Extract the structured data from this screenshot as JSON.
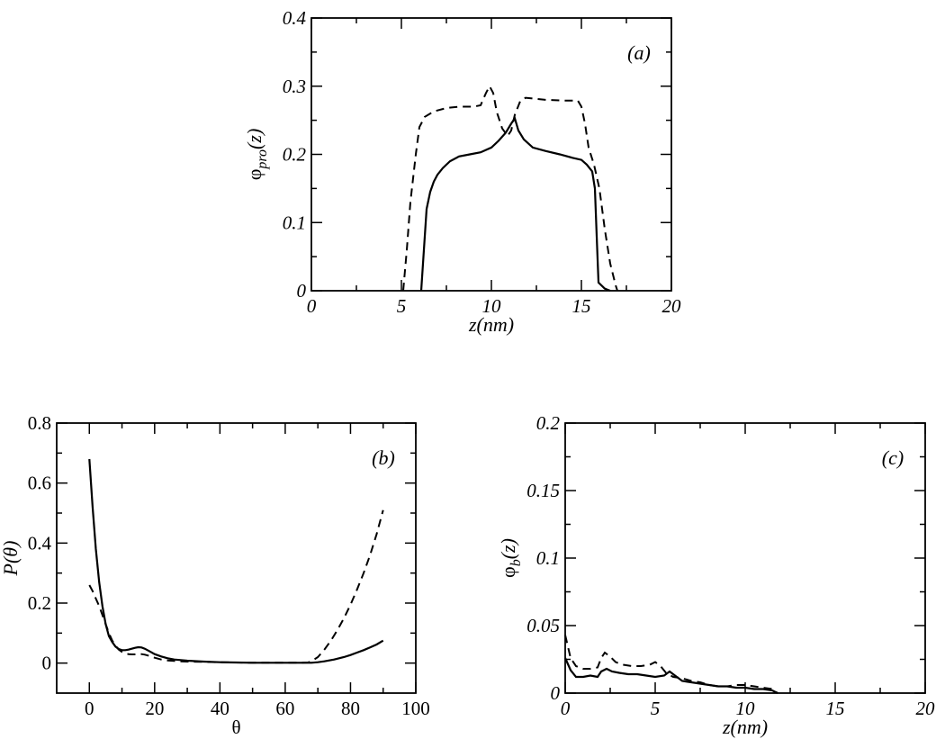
{
  "chart_data": [
    {
      "id": "a",
      "type": "line",
      "panel_label": "(a)",
      "xlabel": "z(nm)",
      "ylabel": "φpro(z)",
      "ylabel_parts": {
        "main": "φ",
        "sub": "pro",
        "arg": "(z)"
      },
      "xlim": [
        0,
        20
      ],
      "ylim": [
        0,
        0.4
      ],
      "xticks": [
        0,
        5,
        10,
        15,
        20
      ],
      "xtick_labels": [
        "0",
        "5",
        "10",
        "15",
        "20"
      ],
      "yticks": [
        0,
        0.1,
        0.2,
        0.3,
        0.4
      ],
      "ytick_labels": [
        "0",
        "0.1",
        "0.2",
        "0.3",
        "0.4"
      ],
      "series": [
        {
          "style": "solid",
          "x": [
            6.1,
            6.25,
            6.4,
            6.6,
            6.8,
            7.0,
            7.3,
            7.7,
            8.2,
            8.8,
            9.4,
            10.0,
            10.4,
            10.8,
            11.1,
            11.3,
            11.5,
            11.8,
            12.3,
            13.0,
            13.8,
            14.5,
            15.0,
            15.3,
            15.6,
            15.75,
            15.85,
            15.95,
            16.3,
            16.6
          ],
          "y": [
            0,
            0.06,
            0.12,
            0.145,
            0.16,
            0.17,
            0.18,
            0.19,
            0.197,
            0.2,
            0.203,
            0.21,
            0.22,
            0.232,
            0.245,
            0.253,
            0.235,
            0.222,
            0.21,
            0.205,
            0.2,
            0.195,
            0.192,
            0.185,
            0.175,
            0.15,
            0.08,
            0.012,
            0.003,
            0
          ]
        },
        {
          "style": "dashed",
          "x": [
            5.1,
            5.3,
            5.5,
            5.8,
            6.0,
            6.3,
            6.8,
            7.5,
            8.2,
            9.0,
            9.4,
            9.7,
            9.9,
            10.1,
            10.3,
            10.6,
            10.9,
            11.1,
            11.3,
            11.6,
            11.9,
            12.3,
            13.0,
            14.0,
            14.8,
            15.0,
            15.2,
            15.4,
            15.7,
            16.0,
            16.3,
            16.6,
            16.9,
            17.0
          ],
          "y": [
            0,
            0.06,
            0.13,
            0.2,
            0.24,
            0.255,
            0.263,
            0.268,
            0.27,
            0.27,
            0.272,
            0.29,
            0.3,
            0.29,
            0.262,
            0.238,
            0.227,
            0.235,
            0.258,
            0.278,
            0.283,
            0.282,
            0.28,
            0.279,
            0.279,
            0.27,
            0.245,
            0.21,
            0.185,
            0.15,
            0.09,
            0.04,
            0.008,
            0
          ]
        }
      ]
    },
    {
      "id": "b",
      "type": "line",
      "panel_label": "(b)",
      "xlabel": "θ",
      "ylabel": "P(θ)",
      "xlim": [
        -10,
        100
      ],
      "ylim": [
        -0.1,
        0.8
      ],
      "xticks": [
        0,
        20,
        40,
        60,
        80,
        100
      ],
      "xtick_labels": [
        "0",
        "20",
        "40",
        "60",
        "80",
        "100"
      ],
      "yticks": [
        0,
        0.2,
        0.4,
        0.6,
        0.8
      ],
      "ytick_labels": [
        "0",
        "0.2",
        "0.4",
        "0.6",
        "0.8"
      ],
      "series": [
        {
          "style": "solid",
          "x": [
            0,
            1,
            2,
            3,
            4,
            5,
            6,
            7,
            8,
            9,
            10,
            11,
            12,
            13,
            14,
            15,
            16,
            17,
            18,
            19,
            20,
            22,
            24,
            26,
            28,
            30,
            35,
            40,
            45,
            50,
            55,
            60,
            65,
            68,
            70,
            72,
            75,
            78,
            80,
            82,
            84,
            86,
            88,
            90
          ],
          "y": [
            0.68,
            0.52,
            0.38,
            0.27,
            0.19,
            0.13,
            0.09,
            0.07,
            0.055,
            0.047,
            0.043,
            0.043,
            0.045,
            0.048,
            0.051,
            0.053,
            0.052,
            0.048,
            0.042,
            0.036,
            0.03,
            0.022,
            0.016,
            0.012,
            0.01,
            0.008,
            0.005,
            0.003,
            0.002,
            0.001,
            0.001,
            0.001,
            0.001,
            0.001,
            0.003,
            0.006,
            0.012,
            0.02,
            0.027,
            0.035,
            0.043,
            0.052,
            0.062,
            0.075
          ]
        },
        {
          "style": "dashed",
          "x": [
            0,
            1,
            2,
            3,
            4,
            5,
            6,
            7,
            8,
            9,
            10,
            11,
            12,
            13,
            14,
            15,
            16,
            17,
            18,
            19,
            20,
            22,
            24,
            26,
            28,
            30,
            35,
            40,
            45,
            50,
            55,
            60,
            65,
            67,
            68,
            70,
            72,
            74,
            76,
            78,
            80,
            82,
            84,
            86,
            88,
            90
          ],
          "y": [
            0.26,
            0.24,
            0.215,
            0.19,
            0.16,
            0.13,
            0.1,
            0.075,
            0.058,
            0.045,
            0.037,
            0.032,
            0.03,
            0.029,
            0.029,
            0.029,
            0.03,
            0.028,
            0.025,
            0.022,
            0.018,
            0.012,
            0.009,
            0.007,
            0.006,
            0.005,
            0.004,
            0.003,
            0.002,
            0.001,
            0.001,
            0.001,
            0.001,
            0.002,
            0.006,
            0.02,
            0.045,
            0.075,
            0.11,
            0.15,
            0.195,
            0.245,
            0.3,
            0.36,
            0.43,
            0.51
          ]
        }
      ]
    },
    {
      "id": "c",
      "type": "line",
      "panel_label": "(c)",
      "xlabel": "z(nm)",
      "ylabel": "φb(z)",
      "ylabel_parts": {
        "main": "φ",
        "sub": "b",
        "arg": "(z)"
      },
      "xlim": [
        0,
        20
      ],
      "ylim": [
        0,
        0.2
      ],
      "xticks": [
        0,
        5,
        10,
        15,
        20
      ],
      "xtick_labels": [
        "0",
        "5",
        "10",
        "15",
        "20"
      ],
      "yticks": [
        0,
        0.05,
        0.1,
        0.15,
        0.2
      ],
      "ytick_labels": [
        "0",
        "0.05",
        "0.1",
        "0.15",
        "0.2"
      ],
      "series": [
        {
          "style": "solid",
          "x": [
            0,
            0.3,
            0.6,
            1.0,
            1.4,
            1.8,
            2.0,
            2.3,
            2.6,
            3.0,
            3.5,
            4.0,
            4.5,
            5.0,
            5.5,
            5.8,
            6.1,
            6.5,
            7.0,
            7.5,
            8.0,
            8.5,
            9.0,
            9.5,
            10.0,
            10.5,
            11.0,
            11.5,
            11.8
          ],
          "y": [
            0.026,
            0.017,
            0.012,
            0.012,
            0.013,
            0.012,
            0.016,
            0.018,
            0.016,
            0.015,
            0.014,
            0.014,
            0.013,
            0.012,
            0.013,
            0.016,
            0.013,
            0.009,
            0.008,
            0.007,
            0.006,
            0.005,
            0.005,
            0.004,
            0.004,
            0.003,
            0.003,
            0.002,
            0
          ]
        },
        {
          "style": "dashed",
          "x": [
            0,
            0.3,
            0.6,
            1.0,
            1.4,
            1.8,
            2.0,
            2.2,
            2.5,
            2.8,
            3.2,
            3.7,
            4.2,
            4.7,
            5.0,
            5.3,
            5.6,
            6.0,
            6.5,
            7.0,
            7.5,
            8.0,
            8.5,
            9.0,
            9.5,
            10.0,
            10.5,
            11.0,
            11.5,
            11.8
          ],
          "y": [
            0.043,
            0.026,
            0.02,
            0.018,
            0.018,
            0.019,
            0.026,
            0.03,
            0.027,
            0.023,
            0.021,
            0.02,
            0.02,
            0.021,
            0.023,
            0.02,
            0.015,
            0.012,
            0.011,
            0.009,
            0.008,
            0.006,
            0.005,
            0.005,
            0.006,
            0.006,
            0.005,
            0.004,
            0.003,
            0
          ]
        }
      ]
    }
  ]
}
